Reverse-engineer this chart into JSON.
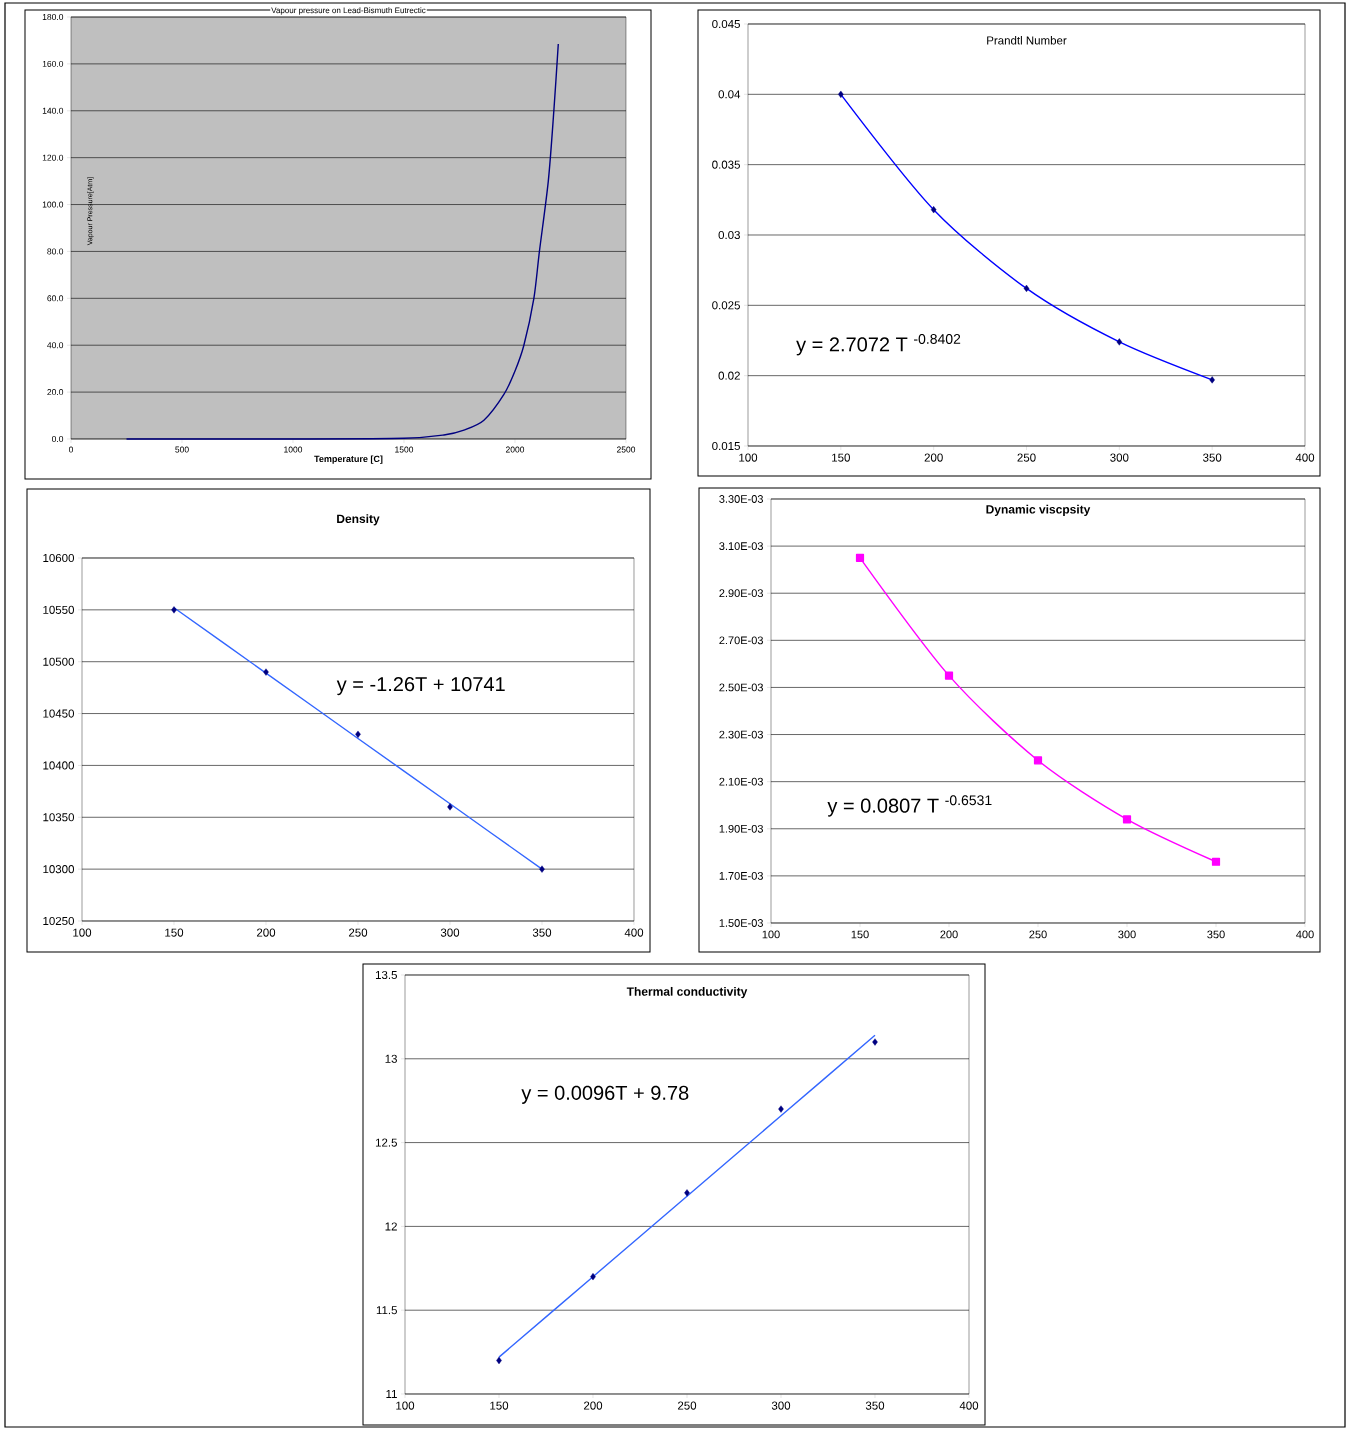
{
  "chart_data": [
    {
      "type": "line",
      "title": "Vapour pressure on Lead-Bismuth Eutrectic",
      "xlabel": "Temperature [C]",
      "ylabel": "Vapour Pressure[Atm]",
      "xlim": [
        0,
        2500
      ],
      "xticks": [
        0,
        500,
        1000,
        1500,
        2000,
        2500
      ],
      "ylim": [
        0,
        180
      ],
      "yticks": [
        {
          "value": 0,
          "label": "0.0"
        },
        {
          "value": 20,
          "label": "20.0"
        },
        {
          "value": 40,
          "label": "40.0"
        },
        {
          "value": 60,
          "label": "60.0"
        },
        {
          "value": 80,
          "label": "80.0"
        },
        {
          "value": 100,
          "label": "100.0"
        },
        {
          "value": 120,
          "label": "120.0"
        },
        {
          "value": 140,
          "label": "140.0"
        },
        {
          "value": 160,
          "label": "160.0"
        },
        {
          "value": 180,
          "label": "180.0"
        }
      ],
      "grid": "y",
      "marker": "none",
      "x": [
        250,
        500,
        1000,
        1500,
        1680,
        1770,
        1860,
        1950,
        2000,
        2040,
        2085,
        2110,
        2150,
        2175,
        2195
      ],
      "series": [
        {
          "color": "#000080",
          "values": [
            0,
            0,
            0,
            0.3,
            1.7,
            3.8,
            8,
            19,
            29,
            40,
            60,
            80,
            110,
            140,
            168.5
          ]
        }
      ]
    },
    {
      "type": "scatter",
      "title": "Prandtl Number",
      "xlim": [
        100,
        400
      ],
      "xticks": [
        100,
        150,
        200,
        250,
        300,
        350,
        400
      ],
      "ylim": [
        0.015,
        0.045
      ],
      "yticks": [
        0.015,
        0.02,
        0.025,
        0.03,
        0.035,
        0.04,
        0.045
      ],
      "grid": "y",
      "annotations": [
        "y = 2.7072 T $^{-0.8402}$"
      ],
      "x": [
        150,
        200,
        250,
        300,
        350
      ],
      "series": [
        {
          "type": "line",
          "color": "#0000ff",
          "marker": "none",
          "values": [
            0.04,
            0.0318,
            0.0262,
            0.0224,
            0.0197
          ]
        },
        {
          "type": "scatter",
          "color": "#000080",
          "marker": "diamond",
          "values": [
            0.04,
            0.0318,
            0.0262,
            0.0224,
            0.0197
          ]
        }
      ]
    },
    {
      "type": "scatter",
      "title": "Density",
      "xlim": [
        100,
        400
      ],
      "xticks": [
        100,
        150,
        200,
        250,
        300,
        350,
        400
      ],
      "ylim": [
        10250,
        10600
      ],
      "yticks": [
        10250,
        10300,
        10350,
        10400,
        10450,
        10500,
        10550,
        10600
      ],
      "grid": "y",
      "annotations": [
        "y = -1.26T + 10741"
      ],
      "x": [
        150,
        200,
        250,
        300,
        350
      ],
      "series": [
        {
          "type": "line",
          "color": "#3366ff",
          "marker": "none",
          "values": [
            10552,
            10489,
            10426,
            10363,
            10300
          ]
        },
        {
          "type": "scatter",
          "color": "#000080",
          "marker": "diamond",
          "values": [
            10550,
            10490,
            10430,
            10360,
            10300
          ]
        }
      ]
    },
    {
      "type": "line",
      "title": "Dynamic viscpsity",
      "xlim": [
        100,
        400
      ],
      "xticks": [
        100,
        150,
        200,
        250,
        300,
        350,
        400
      ],
      "ylim": [
        0.0015,
        0.0033
      ],
      "yticks": [
        {
          "value": 0.0015,
          "label": "1.50E-03"
        },
        {
          "value": 0.0017,
          "label": "1.70E-03"
        },
        {
          "value": 0.0019,
          "label": "1.90E-03"
        },
        {
          "value": 0.0021,
          "label": "2.10E-03"
        },
        {
          "value": 0.0023,
          "label": "2.30E-03"
        },
        {
          "value": 0.0025,
          "label": "2.50E-03"
        },
        {
          "value": 0.0027,
          "label": "2.70E-03"
        },
        {
          "value": 0.0029,
          "label": "2.90E-03"
        },
        {
          "value": 0.0031,
          "label": "3.10E-03"
        },
        {
          "value": 0.0033,
          "label": "3.30E-03"
        }
      ],
      "grid": "y",
      "marker": "square",
      "annotations": [
        "y = 0.0807 T $^{-0.6531}$"
      ],
      "x": [
        150,
        200,
        250,
        300,
        350
      ],
      "series": [
        {
          "color": "#ff00ff",
          "values": [
            0.00305,
            0.00255,
            0.00219,
            0.00194,
            0.00176
          ]
        }
      ]
    },
    {
      "type": "scatter",
      "title": "Thermal conductivity",
      "xlim": [
        100,
        400
      ],
      "xticks": [
        100,
        150,
        200,
        250,
        300,
        350,
        400
      ],
      "ylim": [
        11,
        13.5
      ],
      "yticks": [
        11,
        11.5,
        12,
        12.5,
        13,
        13.5
      ],
      "grid": "y",
      "annotations": [
        "y = 0.0096T + 9.78"
      ],
      "x": [
        150,
        200,
        250,
        300,
        350
      ],
      "series": [
        {
          "type": "line",
          "color": "#3366ff",
          "marker": "none",
          "values": [
            11.22,
            11.7,
            12.18,
            12.66,
            13.14
          ]
        },
        {
          "type": "scatter",
          "color": "#000080",
          "marker": "diamond",
          "values": [
            11.2,
            11.7,
            12.2,
            12.7,
            13.1
          ]
        }
      ]
    }
  ]
}
